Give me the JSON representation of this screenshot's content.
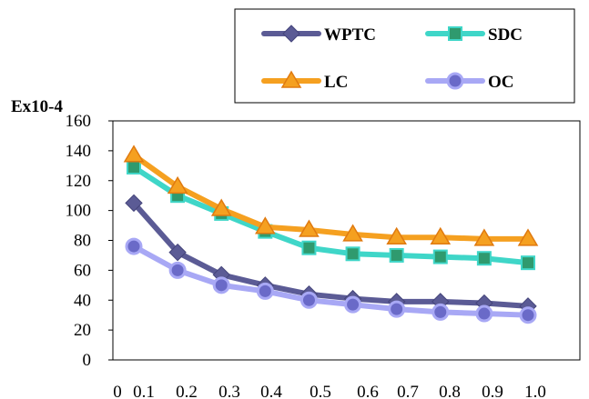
{
  "chart_data": {
    "type": "line",
    "y_unit_label": "Ex10-4",
    "x_tick_labels": [
      "0",
      "0.1",
      "0.2",
      "0.3",
      "0.4",
      "0.5",
      "0.6",
      "0.7",
      "0.8",
      "0.9",
      "1.0"
    ],
    "y_ticks": [
      0,
      20,
      40,
      60,
      80,
      100,
      120,
      140,
      160
    ],
    "y_tick_labels": [
      "0",
      "20",
      "40",
      "60",
      "80",
      "100",
      "120",
      "140",
      "160"
    ],
    "ylim": [
      0,
      160
    ],
    "grid": false,
    "legend_position": "top-right",
    "x": [
      0.1,
      0.2,
      0.3,
      0.4,
      0.5,
      0.6,
      0.7,
      0.8,
      0.9,
      1.0
    ],
    "series": [
      {
        "name": "WPTC",
        "color": "#5b5b95",
        "marker": "diamond",
        "values": [
          105,
          72,
          57,
          50,
          44,
          41,
          39,
          39,
          38,
          36
        ]
      },
      {
        "name": "SDC",
        "color": "#3fd6c8",
        "marker": "square",
        "values": [
          129,
          110,
          98,
          86,
          75,
          71,
          70,
          69,
          68,
          65
        ]
      },
      {
        "name": "LC",
        "color": "#f5a020",
        "marker": "triangle",
        "values": [
          137,
          116,
          101,
          89,
          87,
          84,
          82,
          82,
          81,
          81
        ]
      },
      {
        "name": "OC",
        "color": "#a8a8f5",
        "marker": "circle",
        "values": [
          76,
          60,
          50,
          46,
          40,
          37,
          34,
          32,
          31,
          30
        ]
      }
    ]
  }
}
